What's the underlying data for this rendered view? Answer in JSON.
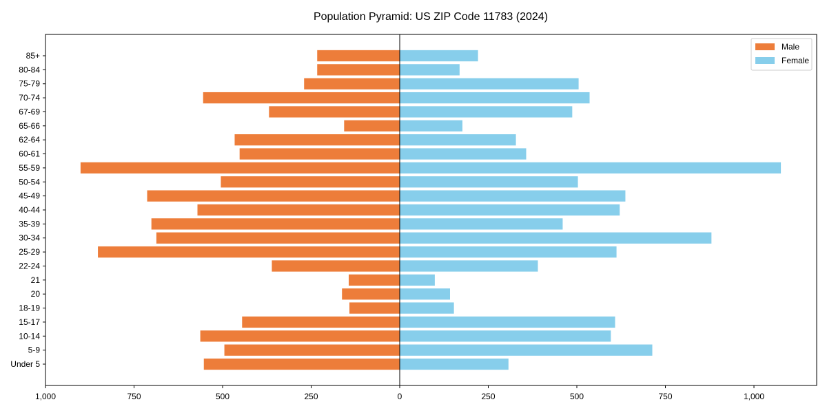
{
  "chart_data": {
    "type": "bar",
    "orientation": "horizontal",
    "title": "Population Pyramid: US ZIP Code 11783 (2024)",
    "xlabel": "",
    "ylabel": "",
    "xlim": [
      -1000,
      1177
    ],
    "xticks": [
      -1000,
      -750,
      -500,
      -250,
      0,
      250,
      500,
      750,
      1000
    ],
    "xtick_labels": [
      "1,000",
      "750",
      "500",
      "250",
      "0",
      "250",
      "500",
      "750",
      "1,000"
    ],
    "categories": [
      "85+",
      "80-84",
      "75-79",
      "70-74",
      "67-69",
      "65-66",
      "62-64",
      "60-61",
      "55-59",
      "50-54",
      "45-49",
      "40-44",
      "35-39",
      "30-34",
      "25-29",
      "22-24",
      "21",
      "20",
      "18-19",
      "15-17",
      "10-14",
      "5-9",
      "Under 5"
    ],
    "series": [
      {
        "name": "Male",
        "color": "#ED7D3A",
        "values": [
          233,
          233,
          270,
          555,
          369,
          157,
          466,
          452,
          901,
          505,
          713,
          571,
          701,
          687,
          852,
          361,
          144,
          163,
          142,
          445,
          563,
          495,
          553
        ]
      },
      {
        "name": "Female",
        "color": "#87CEEB",
        "values": [
          221,
          169,
          505,
          536,
          487,
          177,
          328,
          357,
          1076,
          503,
          637,
          621,
          460,
          880,
          612,
          390,
          99,
          142,
          153,
          608,
          596,
          713,
          307
        ]
      }
    ],
    "legend_position": "top-right",
    "grid": false
  }
}
